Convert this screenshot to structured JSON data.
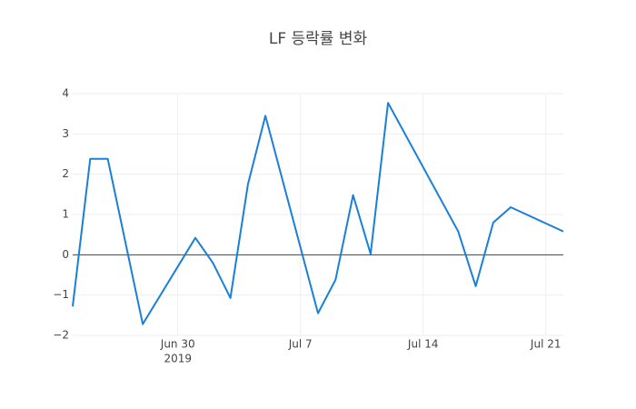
{
  "chart_data": {
    "type": "line",
    "title": "LF 등락률 변화",
    "x": [
      "2019-06-24",
      "2019-06-25",
      "2019-06-26",
      "2019-06-28",
      "2019-07-01",
      "2019-07-02",
      "2019-07-03",
      "2019-07-04",
      "2019-07-05",
      "2019-07-08",
      "2019-07-09",
      "2019-07-10",
      "2019-07-11",
      "2019-07-12",
      "2019-07-16",
      "2019-07-17",
      "2019-07-18",
      "2019-07-19",
      "2019-07-22"
    ],
    "series": [
      {
        "color": "#1a7fd9",
        "values": [
          -1.28,
          2.38,
          2.38,
          -1.72,
          0.42,
          -0.2,
          -1.07,
          1.75,
          3.45,
          -1.45,
          -0.62,
          1.48,
          0.02,
          3.77,
          0.58,
          -0.78,
          0.8,
          1.18,
          0.58
        ]
      }
    ],
    "xlim": [
      "2019-06-24",
      "2019-07-22"
    ],
    "xticks": [
      {
        "value": "2019-06-30",
        "label": "Jun 30"
      },
      {
        "value": "2019-07-07",
        "label": "Jul 7"
      },
      {
        "value": "2019-07-14",
        "label": "Jul 14"
      },
      {
        "value": "2019-07-21",
        "label": "Jul 21"
      }
    ],
    "x_year_label": "2019",
    "ylim": [
      -2,
      4
    ],
    "yticks": [
      {
        "value": -2,
        "label": "−2"
      },
      {
        "value": -1,
        "label": "−1"
      },
      0,
      1,
      2,
      3,
      4
    ],
    "grid": true,
    "zeroline": true
  }
}
